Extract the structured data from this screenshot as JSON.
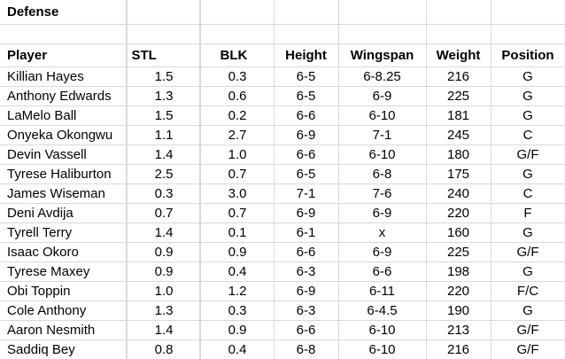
{
  "sheet": {
    "title": "Defense",
    "columns": [
      "Player",
      "STL",
      "BLK",
      "Height",
      "Wingspan",
      "Weight",
      "Position"
    ],
    "rows": [
      [
        "Killian Hayes",
        "1.5",
        "0.3",
        "6-5",
        "6-8.25",
        "216",
        "G"
      ],
      [
        "Anthony Edwards",
        "1.3",
        "0.6",
        "6-5",
        "6-9",
        "225",
        "G"
      ],
      [
        "LaMelo Ball",
        "1.5",
        "0.2",
        "6-6",
        "6-10",
        "181",
        "G"
      ],
      [
        "Onyeka Okongwu",
        "1.1",
        "2.7",
        "6-9",
        "7-1",
        "245",
        "C"
      ],
      [
        "Devin Vassell",
        "1.4",
        "1.0",
        "6-6",
        "6-10",
        "180",
        "G/F"
      ],
      [
        "Tyrese Haliburton",
        "2.5",
        "0.7",
        "6-5",
        "6-8",
        "175",
        "G"
      ],
      [
        "James Wiseman",
        "0.3",
        "3.0",
        "7-1",
        "7-6",
        "240",
        "C"
      ],
      [
        "Deni Avdija",
        "0.7",
        "0.7",
        "6-9",
        "6-9",
        "220",
        "F"
      ],
      [
        "Tyrell Terry",
        "1.4",
        "0.1",
        "6-1",
        "x",
        "160",
        "G"
      ],
      [
        "Isaac Okoro",
        "0.9",
        "0.9",
        "6-6",
        "6-9",
        "225",
        "G/F"
      ],
      [
        "Tyrese Maxey",
        "0.9",
        "0.4",
        "6-3",
        "6-6",
        "198",
        "G"
      ],
      [
        "Obi Toppin",
        "1.0",
        "1.2",
        "6-9",
        "6-11",
        "220",
        "F/C"
      ],
      [
        "Cole Anthony",
        "1.3",
        "0.3",
        "6-3",
        "6-4.5",
        "190",
        "G"
      ],
      [
        "Aaron Nesmith",
        "1.4",
        "0.9",
        "6-6",
        "6-10",
        "213",
        "G/F"
      ],
      [
        "Saddiq Bey",
        "0.8",
        "0.4",
        "6-8",
        "6-10",
        "216",
        "G/F"
      ]
    ]
  }
}
